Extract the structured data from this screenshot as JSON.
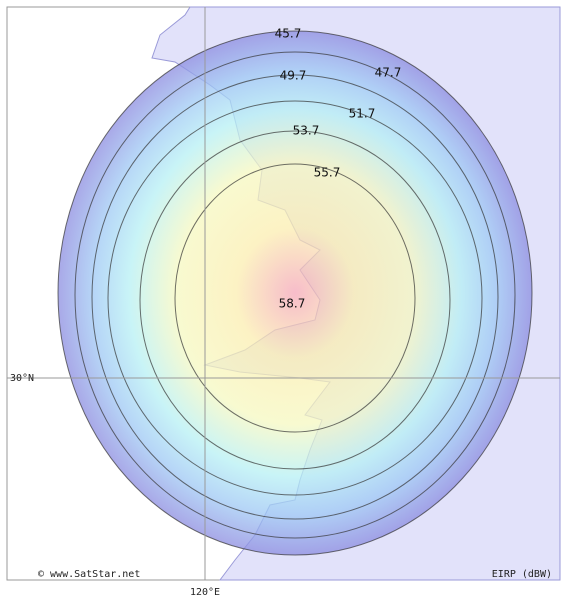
{
  "map": {
    "contours": [
      {
        "value": 45.7
      },
      {
        "value": 47.7
      },
      {
        "value": 49.7
      },
      {
        "value": 51.7
      },
      {
        "value": 53.7
      },
      {
        "value": 55.7
      },
      {
        "value": 58.7
      }
    ],
    "latitude_label": "30°N",
    "longitude_label": "120°E",
    "credit": "© www.SatStar.net",
    "unit_label": "EIRP (dBW)"
  }
}
